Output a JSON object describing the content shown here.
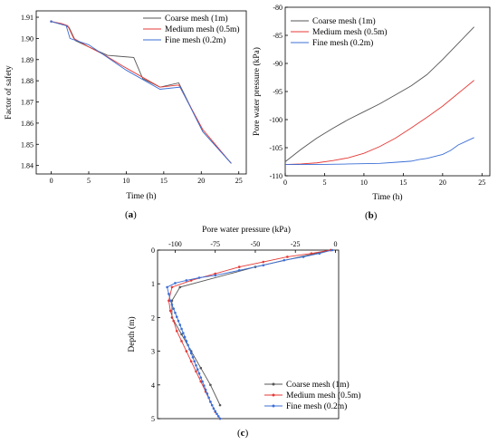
{
  "chart_data": [
    {
      "type": "line",
      "panel_label": "a",
      "xlabel": "Time (h)",
      "ylabel": "Factor of safety",
      "xlim": [
        -2,
        26
      ],
      "ylim": [
        1.836,
        1.913
      ],
      "xticks": [
        0,
        5,
        10,
        15,
        20,
        25
      ],
      "yticks": [
        1.84,
        1.85,
        1.86,
        1.87,
        1.88,
        1.89,
        1.9,
        1.91
      ],
      "ytick_labels": [
        "1.84",
        "1.85",
        "1.86",
        "1.87",
        "1.88",
        "1.89",
        "1.90",
        "1.91"
      ],
      "legend_position": "top-right",
      "series": [
        {
          "name": "Coarse mesh (1m)",
          "color": "#555555",
          "x": [
            0,
            2.0,
            2.4,
            3.2,
            5,
            7.5,
            11,
            12.2,
            14.5,
            17,
            20.2,
            24
          ],
          "y": [
            1.908,
            1.906,
            1.905,
            1.899,
            1.896,
            1.892,
            1.891,
            1.881,
            1.877,
            1.879,
            1.856,
            1.841
          ]
        },
        {
          "name": "Medium mesh (0.5m)",
          "color": "#e53935",
          "x": [
            0,
            1.4,
            2.2,
            3.0,
            5,
            7.2,
            9.5,
            10.5,
            14.5,
            17.0,
            20.2,
            24
          ],
          "y": [
            1.908,
            1.907,
            1.906,
            1.9,
            1.896,
            1.892,
            1.887,
            1.885,
            1.877,
            1.878,
            1.857,
            1.841
          ]
        },
        {
          "name": "Fine mesh (0.2m)",
          "color": "#3b6fd6",
          "x": [
            0,
            1.0,
            2.0,
            2.5,
            5,
            7.5,
            10.0,
            14.5,
            17.2,
            20.2,
            24
          ],
          "y": [
            1.908,
            1.907,
            1.906,
            1.9,
            1.897,
            1.891,
            1.885,
            1.876,
            1.877,
            1.856,
            1.841
          ]
        }
      ]
    },
    {
      "type": "line",
      "panel_label": "b",
      "xlabel": "Time (h)",
      "ylabel": "Pore water pressure (kPa)",
      "xlim": [
        0,
        26
      ],
      "ylim": [
        -110,
        -80
      ],
      "xticks": [
        0,
        5,
        10,
        15,
        20,
        25
      ],
      "yticks": [
        -110,
        -105,
        -100,
        -95,
        -90,
        -85,
        -80
      ],
      "legend_position": "top-left",
      "series": [
        {
          "name": "Coarse mesh (1m)",
          "color": "#555555",
          "x": [
            0,
            2,
            4,
            6,
            8,
            10,
            12,
            14,
            16,
            18,
            20,
            22,
            24
          ],
          "y": [
            -107.5,
            -105.3,
            -103.3,
            -101.6,
            -100.0,
            -98.6,
            -97.2,
            -95.6,
            -94.0,
            -92.0,
            -89.3,
            -86.4,
            -83.5
          ]
        },
        {
          "name": "Medium mesh (0.5m)",
          "color": "#e53935",
          "x": [
            0,
            2,
            4,
            6,
            8,
            10,
            12,
            14,
            16,
            18,
            20,
            22,
            24
          ],
          "y": [
            -108.0,
            -107.9,
            -107.7,
            -107.3,
            -106.8,
            -106.0,
            -104.8,
            -103.3,
            -101.5,
            -99.6,
            -97.6,
            -95.3,
            -93.0
          ]
        },
        {
          "name": "Fine mesh (0.2m)",
          "color": "#3b6fd6",
          "x": [
            0,
            4,
            8,
            12,
            14,
            16,
            17,
            18,
            20,
            21,
            22,
            24
          ],
          "y": [
            -108.0,
            -108.0,
            -107.9,
            -107.8,
            -107.6,
            -107.4,
            -107.1,
            -106.9,
            -106.2,
            -105.5,
            -104.5,
            -103.2
          ]
        }
      ]
    },
    {
      "type": "line",
      "panel_label": "c",
      "xlabel": "Pore water pressure (kPa)",
      "ylabel": "Depth (m)",
      "xaxis_position": "top",
      "yaxis_inverted": true,
      "xlim": [
        -111,
        2
      ],
      "ylim": [
        0,
        5
      ],
      "xticks": [
        -100,
        -75,
        -50,
        -25,
        0
      ],
      "yticks": [
        0,
        1,
        2,
        3,
        4,
        5
      ],
      "legend_position": "bottom-right",
      "series": [
        {
          "name": "Coarse mesh (1m)",
          "color": "#555555",
          "marker": "dot",
          "x": [
            -3,
            -50,
            -97,
            -102,
            -102,
            -96,
            -90,
            -84,
            -78,
            -72
          ],
          "y": [
            0,
            0.5,
            1.1,
            1.5,
            2.0,
            2.5,
            3.0,
            3.5,
            4.0,
            4.6
          ]
        },
        {
          "name": "Medium mesh (0.5m)",
          "color": "#e53935",
          "marker": "dot",
          "x": [
            -3,
            -15,
            -30,
            -45,
            -60,
            -75,
            -90,
            -102,
            -104,
            -103,
            -101,
            -99,
            -96,
            -93,
            -90,
            -87,
            -84,
            -81,
            -78,
            -75,
            -72
          ],
          "y": [
            0,
            0.1,
            0.2,
            0.35,
            0.5,
            0.7,
            0.9,
            1.1,
            1.5,
            1.8,
            2.1,
            2.4,
            2.7,
            3.0,
            3.3,
            3.6,
            3.9,
            4.2,
            4.5,
            4.8,
            5.0
          ]
        },
        {
          "name": "Fine mesh (0.2m)",
          "color": "#3b6fd6",
          "marker": "dot",
          "x": [
            -2,
            -10,
            -20,
            -32,
            -45,
            -60,
            -75,
            -85,
            -93,
            -100,
            -105,
            -104,
            -103,
            -102,
            -101,
            -100,
            -99,
            -98,
            -97,
            -96,
            -95,
            -94,
            -93,
            -92,
            -91,
            -90,
            -89,
            -88,
            -87,
            -86,
            -85,
            -84,
            -83,
            -82,
            -81,
            -80,
            -79,
            -78,
            -77,
            -76,
            -75,
            -74,
            -73,
            -72
          ],
          "y": [
            0,
            0.1,
            0.2,
            0.3,
            0.45,
            0.6,
            0.75,
            0.82,
            0.9,
            0.98,
            1.1,
            1.3,
            1.5,
            1.62,
            1.74,
            1.86,
            1.98,
            2.1,
            2.22,
            2.34,
            2.46,
            2.58,
            2.7,
            2.82,
            2.94,
            3.06,
            3.18,
            3.3,
            3.42,
            3.54,
            3.66,
            3.78,
            3.9,
            4.02,
            4.14,
            4.26,
            4.38,
            4.5,
            4.6,
            4.7,
            4.78,
            4.86,
            4.93,
            5.0
          ]
        }
      ]
    }
  ]
}
